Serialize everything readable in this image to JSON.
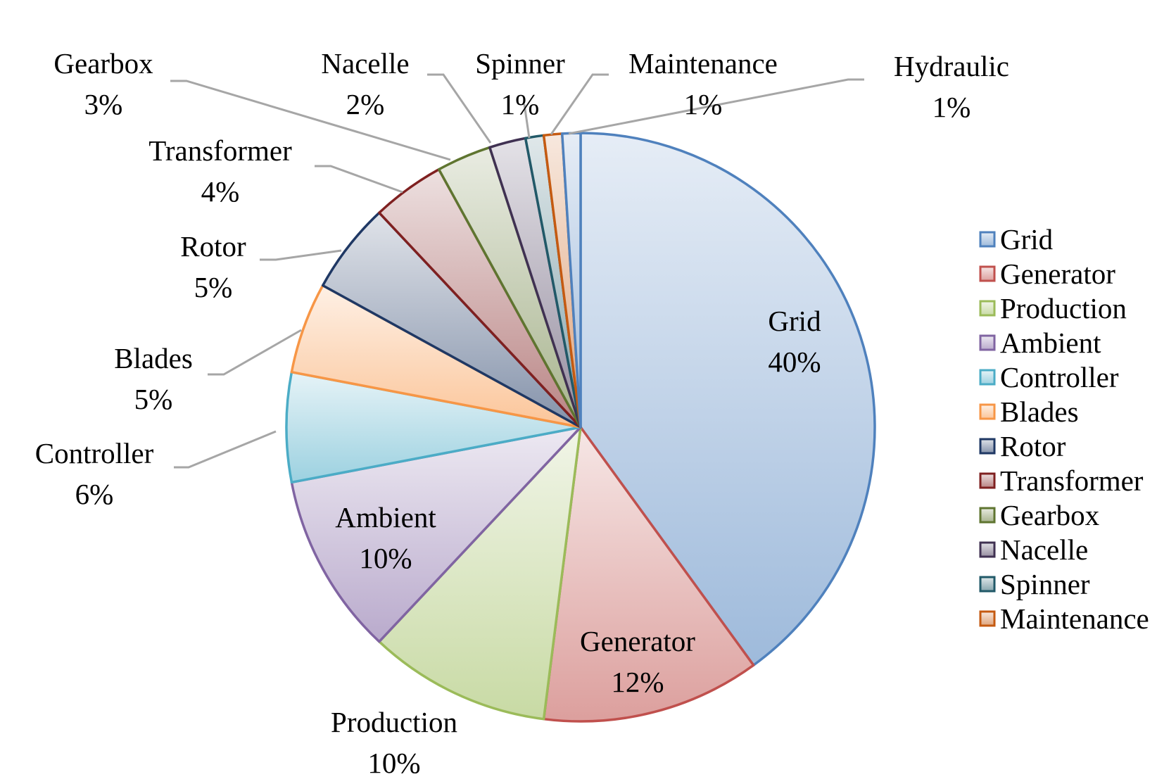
{
  "chart_data": {
    "type": "pie",
    "slices": [
      {
        "name": "Grid",
        "value": 40,
        "label": "40%",
        "color": "#4f81bd"
      },
      {
        "name": "Generator",
        "value": 12,
        "label": "12%",
        "color": "#c0504d"
      },
      {
        "name": "Production",
        "value": 10,
        "label": "10%",
        "color": "#9bbb59"
      },
      {
        "name": "Ambient",
        "value": 10,
        "label": "10%",
        "color": "#8064a2"
      },
      {
        "name": "Controller",
        "value": 6,
        "label": "6%",
        "color": "#4bacc6"
      },
      {
        "name": "Blades",
        "value": 5,
        "label": "5%",
        "color": "#f79646"
      },
      {
        "name": "Rotor",
        "value": 5,
        "label": "5%",
        "color": "#1f3864"
      },
      {
        "name": "Transformer",
        "value": 4,
        "label": "4%",
        "color": "#7f2020"
      },
      {
        "name": "Gearbox",
        "value": 3,
        "label": "3%",
        "color": "#5f7530"
      },
      {
        "name": "Nacelle",
        "value": 2,
        "label": "2%",
        "color": "#403152"
      },
      {
        "name": "Spinner",
        "value": 1,
        "label": "1%",
        "color": "#215968"
      },
      {
        "name": "Maintenance",
        "value": 1,
        "label": "1%",
        "color": "#c55a11"
      },
      {
        "name": "Hydraulic",
        "value": 1,
        "label": "1%",
        "color": "#4f81bd"
      }
    ],
    "legend": {
      "placement": "right",
      "entries": [
        "Grid",
        "Generator",
        "Production",
        "Ambient",
        "Controller",
        "Blades",
        "Rotor",
        "Transformer",
        "Gearbox",
        "Nacelle",
        "Spinner",
        "Maintenance"
      ]
    }
  }
}
